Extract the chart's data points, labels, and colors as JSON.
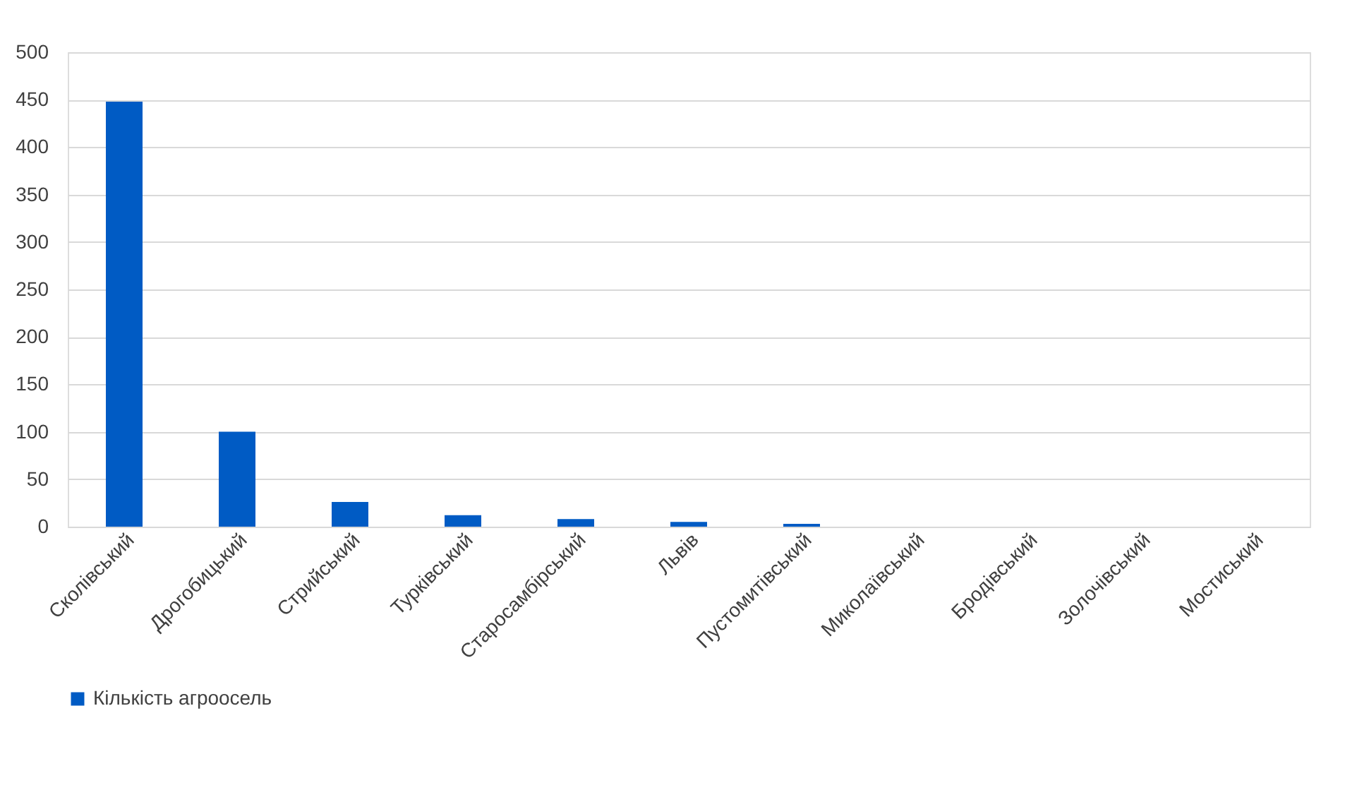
{
  "chart_data": {
    "type": "bar",
    "categories": [
      "Сколівський",
      "Дрогобицький",
      "Стрийський",
      "Турківський",
      "Старосамбірський",
      "Львів",
      "Пустомитівський",
      "Миколаївський",
      "Бродівський",
      "Золочівський",
      "Мостиський"
    ],
    "series": [
      {
        "name": "Кількість агроосель",
        "color": "#005bc4",
        "values": [
          448,
          100,
          26,
          12,
          8,
          5,
          3,
          0,
          0,
          0,
          0
        ]
      }
    ],
    "ylim": [
      0,
      500
    ],
    "yticks": [
      0,
      50,
      100,
      150,
      200,
      250,
      300,
      350,
      400,
      450,
      500
    ],
    "grid": "y",
    "legend": "bottom"
  }
}
